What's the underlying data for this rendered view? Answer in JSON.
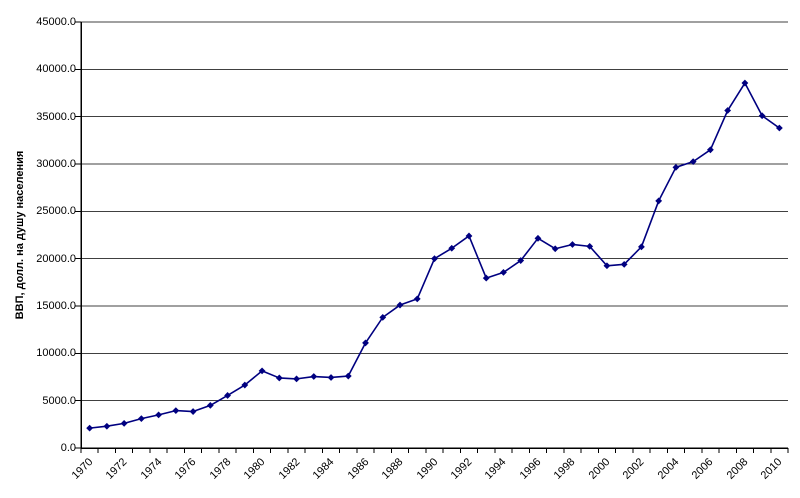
{
  "chart_data": {
    "type": "line",
    "title": "",
    "xlabel": "",
    "ylabel": "ВВП, долл. на душу населения",
    "x": [
      1970,
      1971,
      1972,
      1973,
      1974,
      1975,
      1976,
      1977,
      1978,
      1979,
      1980,
      1981,
      1982,
      1983,
      1984,
      1985,
      1986,
      1987,
      1988,
      1989,
      1990,
      1991,
      1992,
      1993,
      1994,
      1995,
      1996,
      1997,
      1998,
      1999,
      2000,
      2001,
      2002,
      2003,
      2004,
      2005,
      2006,
      2007,
      2008,
      2009,
      2010
    ],
    "values": [
      2100,
      2300,
      2600,
      3100,
      3500,
      3950,
      3850,
      4500,
      5550,
      6650,
      8150,
      7400,
      7300,
      7550,
      7450,
      7600,
      11100,
      13800,
      15100,
      15750,
      20000,
      21100,
      22400,
      17950,
      18550,
      19800,
      22150,
      21050,
      21500,
      21300,
      19250,
      19400,
      21250,
      26100,
      29650,
      30250,
      31500,
      35650,
      38550,
      35100,
      33800
    ],
    "ylim": [
      0,
      45000
    ],
    "ytick_step": 5000,
    "ytick_labels": [
      "0.0",
      "5000.0",
      "10000.0",
      "15000.0",
      "20000.0",
      "25000.0",
      "30000.0",
      "35000.0",
      "40000.0",
      "45000.0"
    ],
    "xtick_labels": [
      "1970",
      "1972",
      "1974",
      "1976",
      "1978",
      "1980",
      "1982",
      "1984",
      "1986",
      "1988",
      "1990",
      "1992",
      "1994",
      "1996",
      "1998",
      "2000",
      "2002",
      "2004",
      "2006",
      "2008",
      "2010"
    ],
    "xtick_label_every_n_years": 2,
    "grid": "horizontal",
    "legend_position": "none",
    "marker": "diamond",
    "colors": {
      "series": "#000080",
      "gridline": "#404040",
      "axis": "#000000",
      "text": "#000000",
      "background": "#ffffff"
    }
  }
}
